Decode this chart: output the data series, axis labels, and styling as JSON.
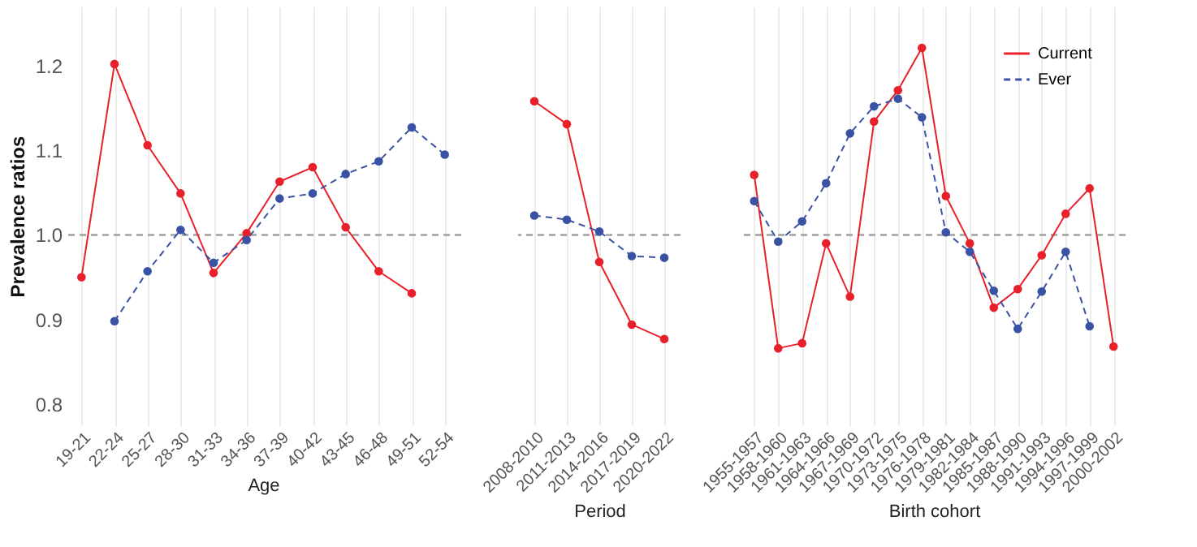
{
  "chart_data": [
    {
      "type": "line",
      "ylabel": "Prevalence ratios",
      "xlabel": "Age",
      "categories": [
        "19-21",
        "22-24",
        "25-27",
        "28-30",
        "31-33",
        "34-36",
        "37-39",
        "40-42",
        "43-45",
        "46-48",
        "49-51",
        "52-54"
      ],
      "series": [
        {
          "color": "#e8202a",
          "line_style": "solid",
          "values": [
            0.95,
            1.202,
            1.106,
            1.049,
            0.955,
            1.002,
            1.063,
            1.08,
            1.009,
            0.957,
            0.931,
            null
          ]
        },
        {
          "color": "#3a52a4",
          "line_style": "dashed",
          "values": [
            null,
            0.898,
            0.957,
            1.006,
            0.967,
            0.994,
            1.043,
            1.049,
            1.072,
            1.087,
            1.127,
            1.095
          ]
        }
      ],
      "ylim": [
        0.775,
        1.27
      ],
      "yticks": [
        0.8,
        0.9,
        {
          "value": 1.0,
          "label": "1.0"
        },
        1.1,
        1.2
      ],
      "grid": "x",
      "marker": "circle",
      "legend": false,
      "ref_lines": [
        {
          "axis": "y",
          "value": 1.0,
          "color": "#a0a0a0",
          "line_style": "dashed"
        }
      ]
    },
    {
      "type": "line",
      "xlabel": "Period",
      "categories": [
        "2008-2010",
        "2011-2013",
        "2014-2016",
        "2017-2019",
        "2020-2022"
      ],
      "series": [
        {
          "color": "#e8202a",
          "line_style": "solid",
          "values": [
            1.158,
            1.131,
            0.968,
            0.894,
            0.877
          ]
        },
        {
          "color": "#3a52a4",
          "line_style": "dashed",
          "values": [
            1.023,
            1.018,
            1.004,
            0.975,
            0.973
          ]
        }
      ],
      "ylim": [
        0.775,
        1.27
      ],
      "tick_labels": "x",
      "grid": "x",
      "marker": "circle",
      "legend": false,
      "ref_lines": [
        {
          "axis": "y",
          "value": 1.0,
          "color": "#a0a0a0",
          "line_style": "dashed"
        }
      ]
    },
    {
      "type": "line",
      "xlabel": "Birth cohort",
      "categories": [
        "1955-1957",
        "1958-1960",
        "1961-1963",
        "1964-1966",
        "1967-1969",
        "1970-1972",
        "1973-1975",
        "1976-1978",
        "1979-1981",
        "1982-1984",
        "1985-1987",
        "1988-1990",
        "1991-1993",
        "1994-1996",
        "1997-1999",
        "2000-2002"
      ],
      "series": [
        {
          "name": "Current",
          "color": "#e8202a",
          "line_style": "solid",
          "values": [
            1.071,
            0.866,
            0.872,
            0.99,
            0.927,
            1.134,
            1.171,
            1.221,
            1.046,
            0.99,
            0.914,
            0.936,
            0.976,
            1.025,
            1.055,
            0.868
          ]
        },
        {
          "name": "Ever",
          "color": "#3a52a4",
          "line_style": "dashed",
          "values": [
            1.04,
            0.992,
            1.016,
            1.061,
            1.12,
            1.152,
            1.161,
            1.139,
            1.003,
            0.98,
            0.934,
            0.889,
            0.933,
            0.98,
            0.892,
            null
          ]
        }
      ],
      "ylim": [
        0.775,
        1.27
      ],
      "tick_labels": "x",
      "grid": "x",
      "marker": "circle",
      "legend": "top right",
      "ref_lines": [
        {
          "axis": "y",
          "value": 1.0,
          "color": "#a0a0a0",
          "line_style": "dashed"
        }
      ]
    }
  ]
}
